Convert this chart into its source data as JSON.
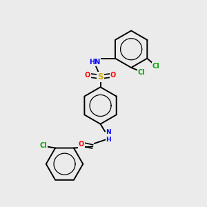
{
  "background_color": "#ebebeb",
  "figsize": [
    3.0,
    3.0
  ],
  "dpi": 100,
  "bond_color": "#000000",
  "bond_width": 1.4,
  "atom_colors": {
    "N": "#0000ff",
    "O": "#ff0000",
    "S": "#ccaa00",
    "Cl": "#00aa00"
  },
  "font_size": 7.0
}
